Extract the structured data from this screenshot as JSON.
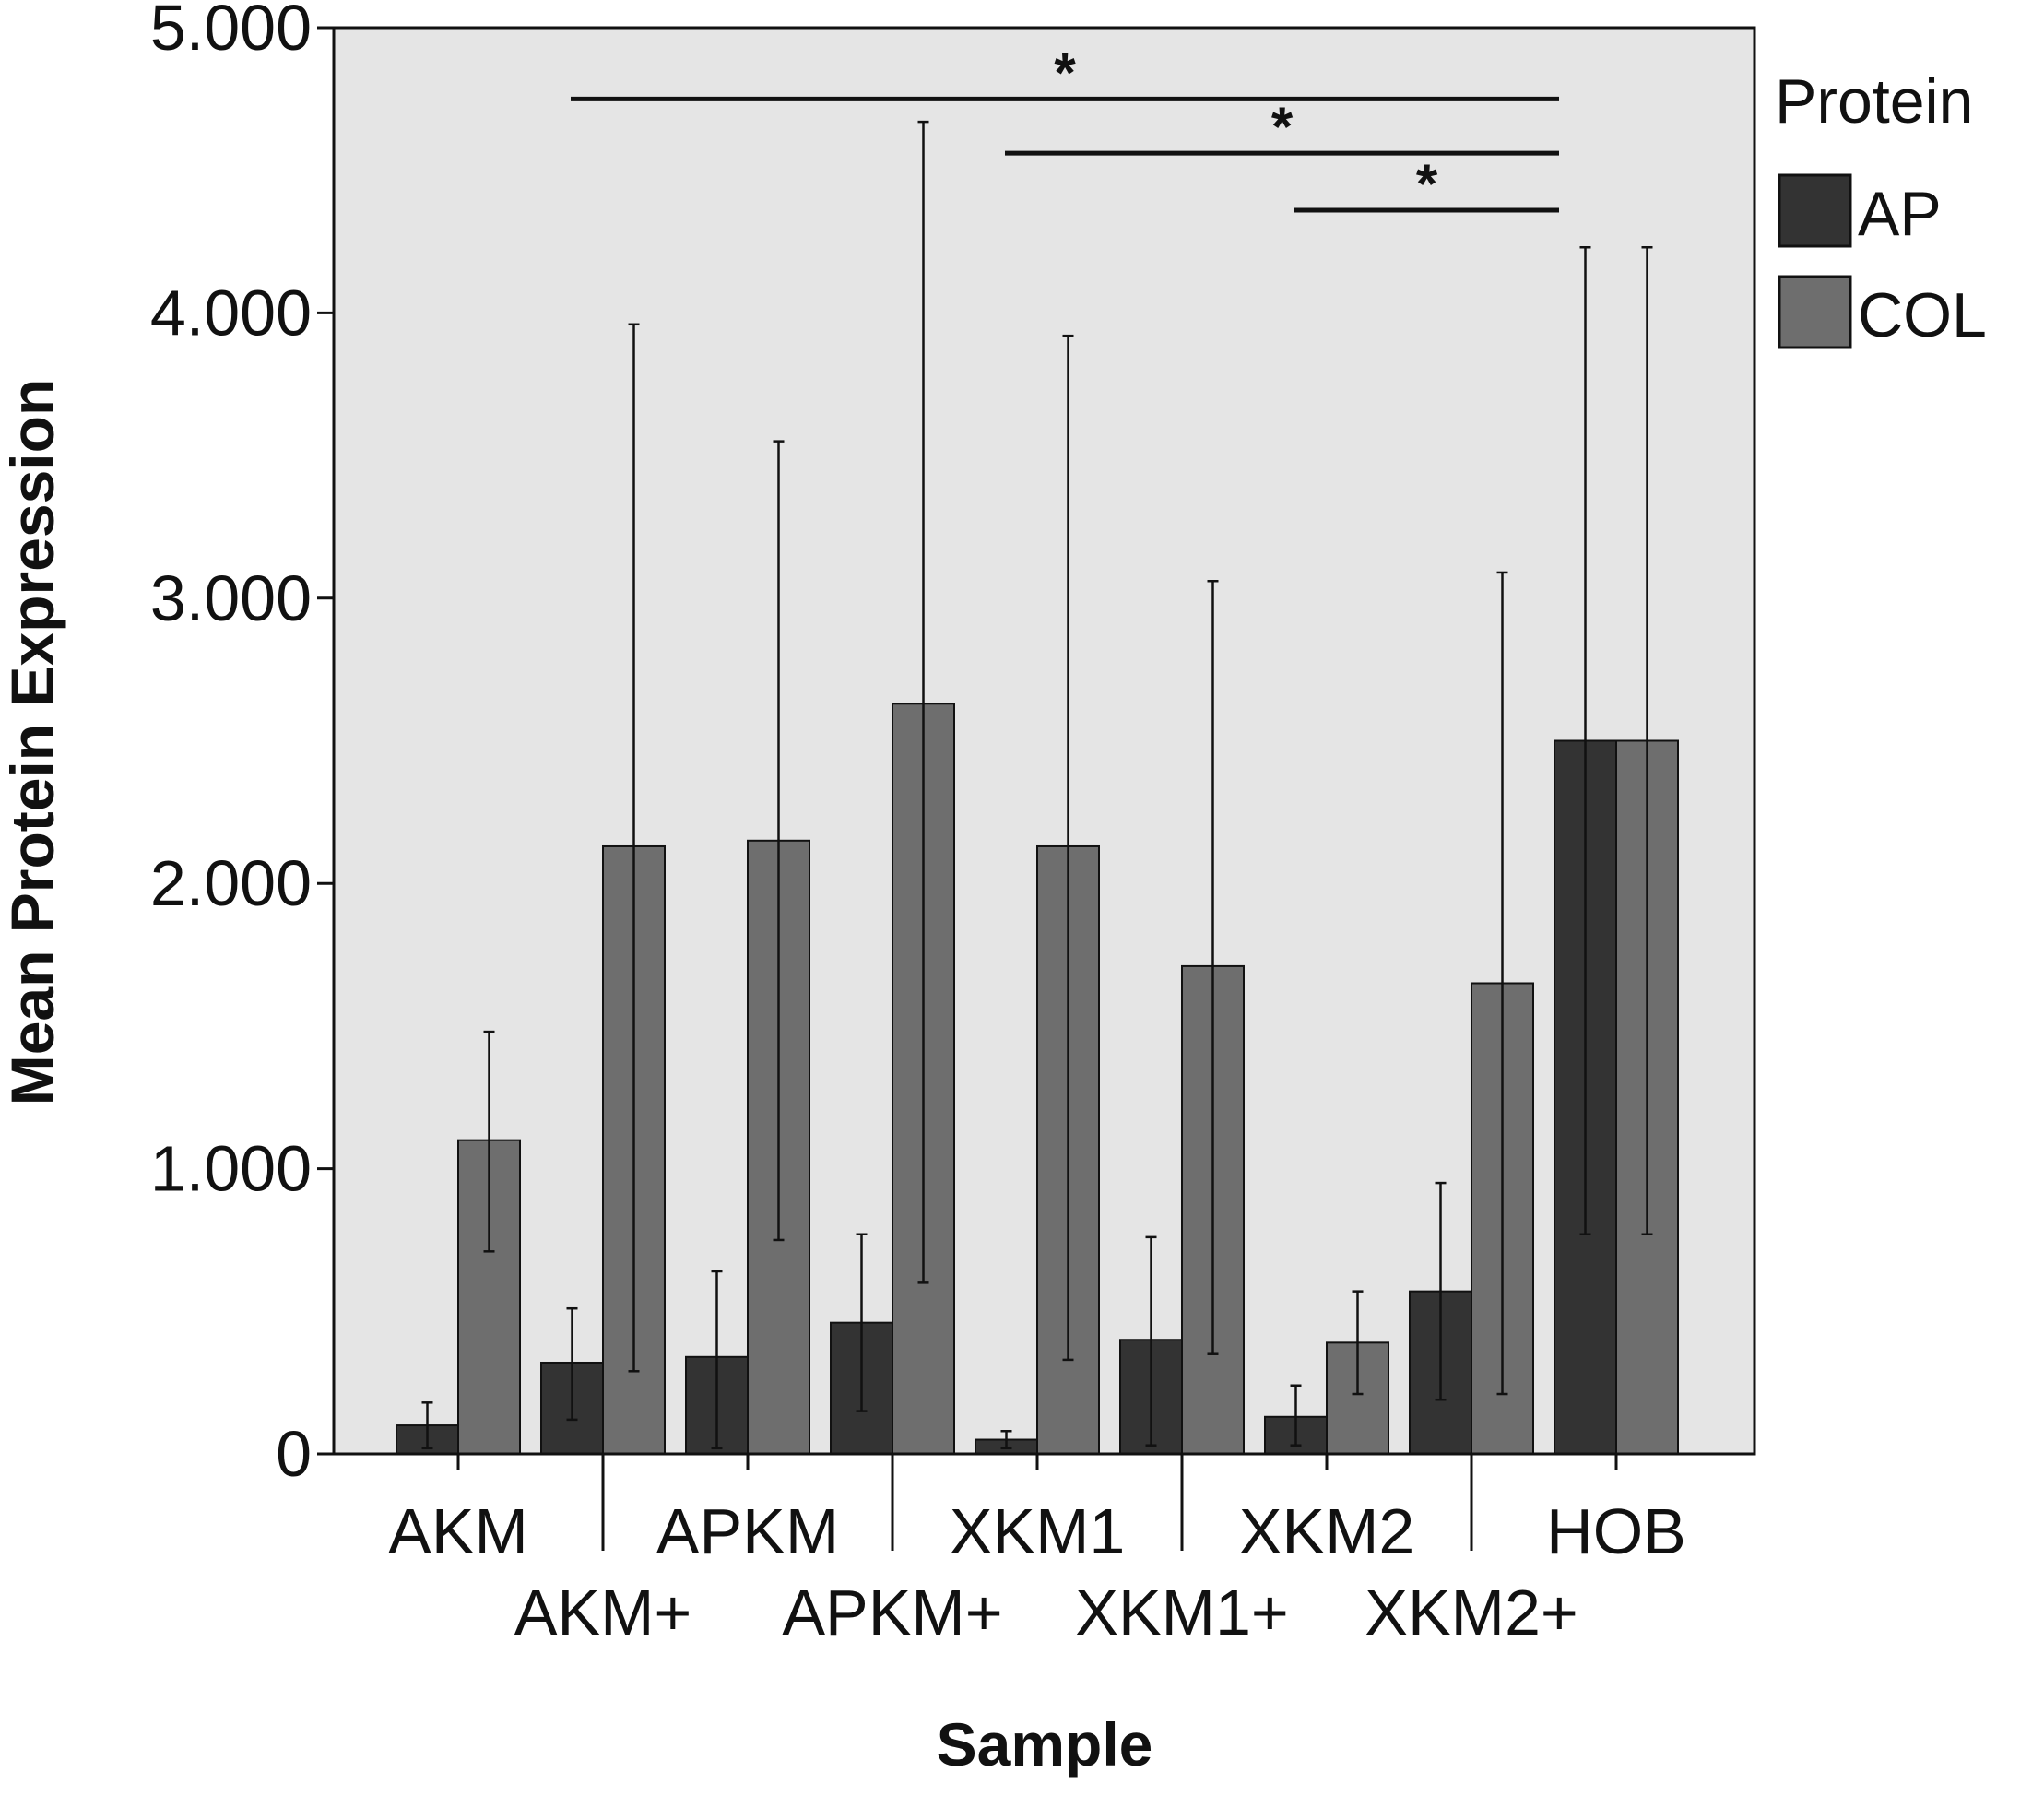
{
  "chart_data": {
    "type": "bar",
    "xlabel": "Sample",
    "ylabel": "Mean Protein Expression",
    "ylim": [
      0,
      5
    ],
    "yticks": [
      0,
      1,
      2,
      3,
      4,
      5
    ],
    "ytick_labels": [
      "0",
      "1.000",
      "2.000",
      "3.000",
      "4.000",
      "5.000"
    ],
    "grid": false,
    "background": "#e5e5e5",
    "categories": [
      "AKM",
      "AKM+",
      "APKM",
      "APKM+",
      "XKM1",
      "XKM1+",
      "XKM2",
      "XKM2+",
      "HOB"
    ],
    "series": [
      {
        "name": "AP",
        "color": "#333333",
        "values": [
          0.1,
          0.32,
          0.34,
          0.46,
          0.05,
          0.4,
          0.13,
          0.57,
          2.5
        ],
        "error_low": [
          0.02,
          0.12,
          0.02,
          0.15,
          0.02,
          0.03,
          0.03,
          0.19,
          0.77
        ],
        "error_high": [
          0.18,
          0.51,
          0.64,
          0.77,
          0.08,
          0.76,
          0.24,
          0.95,
          4.23
        ]
      },
      {
        "name": "COL",
        "color": "#6e6e6e",
        "values": [
          1.1,
          2.13,
          2.15,
          2.63,
          2.13,
          1.71,
          0.39,
          1.65,
          2.5
        ],
        "error_low": [
          0.71,
          0.29,
          0.75,
          0.6,
          0.33,
          0.35,
          0.21,
          0.21,
          0.77
        ],
        "error_high": [
          1.48,
          3.96,
          3.55,
          4.67,
          3.92,
          3.06,
          0.57,
          3.09,
          4.23
        ]
      }
    ],
    "legend": {
      "title": "Protein",
      "position": "right",
      "entries": [
        "AP",
        "COL"
      ]
    },
    "significance": [
      {
        "from": "AKM+",
        "to": "HOB",
        "y": 4.75,
        "label": "*"
      },
      {
        "from": "XKM1",
        "to": "HOB",
        "y": 4.56,
        "label": "*"
      },
      {
        "from": "XKM2",
        "to": "HOB",
        "y": 4.36,
        "label": "*"
      }
    ]
  }
}
